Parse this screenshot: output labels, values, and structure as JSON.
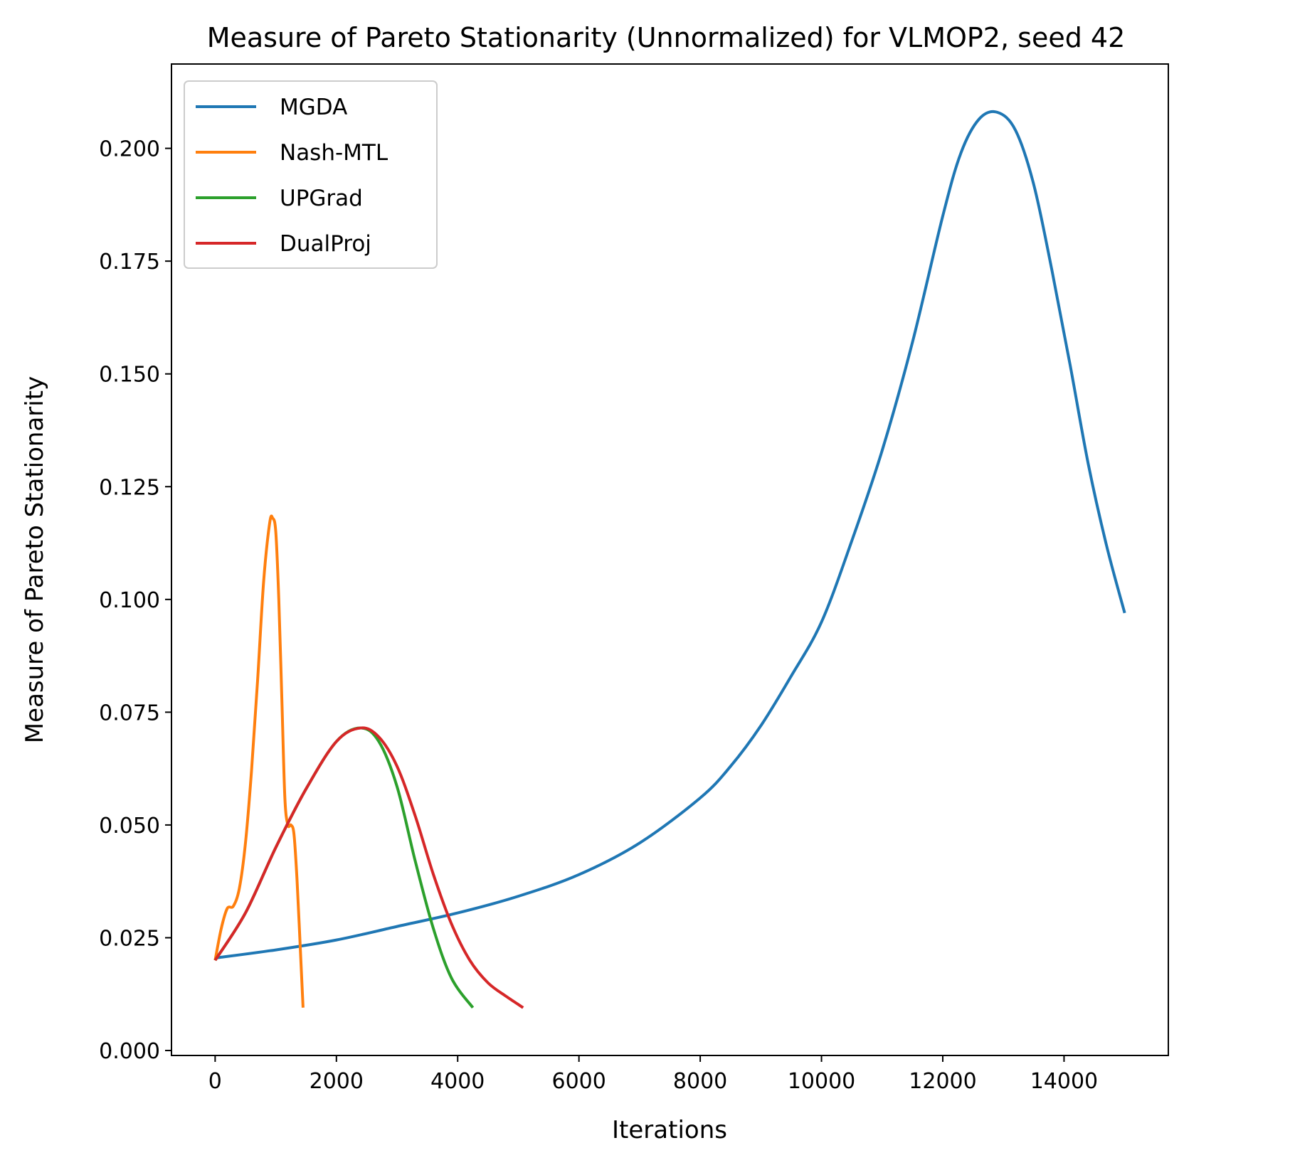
{
  "chart_data": {
    "type": "line",
    "title": "Measure of Pareto Stationarity (Unnormalized) for VLMOP2, seed 42",
    "xlabel": "Iterations",
    "ylabel": "Measure of Pareto Stationarity",
    "xlim": [
      -720,
      15720
    ],
    "ylim": [
      -0.0011,
      0.2187
    ],
    "x_ticks": [
      0,
      2000,
      4000,
      6000,
      8000,
      10000,
      12000,
      14000
    ],
    "x_tick_labels": [
      "0",
      "2000",
      "4000",
      "6000",
      "8000",
      "10000",
      "12000",
      "14000"
    ],
    "y_ticks": [
      0.0,
      0.025,
      0.05,
      0.075,
      0.1,
      0.125,
      0.15,
      0.175,
      0.2
    ],
    "y_tick_labels": [
      "0.000",
      "0.025",
      "0.050",
      "0.075",
      "0.100",
      "0.125",
      "0.150",
      "0.175",
      "0.200"
    ],
    "grid": false,
    "legend_position": "top-left",
    "series": [
      {
        "name": "MGDA",
        "color": "#1f77b4",
        "x": [
          0,
          1000,
          2000,
          3000,
          4000,
          5000,
          6000,
          7000,
          8000,
          8500,
          9000,
          9500,
          10000,
          10500,
          11000,
          11500,
          12000,
          12300,
          12600,
          12900,
          13200,
          13500,
          13800,
          14100,
          14400,
          14700,
          15000
        ],
        "y": [
          0.0205,
          0.0223,
          0.0245,
          0.0275,
          0.0305,
          0.0342,
          0.039,
          0.046,
          0.056,
          0.063,
          0.072,
          0.083,
          0.095,
          0.113,
          0.133,
          0.157,
          0.185,
          0.199,
          0.2065,
          0.208,
          0.204,
          0.192,
          0.173,
          0.152,
          0.13,
          0.112,
          0.097
        ]
      },
      {
        "name": "Nash-MTL",
        "color": "#ff7f0e",
        "x": [
          0,
          100,
          200,
          300,
          400,
          500,
          600,
          700,
          800,
          900,
          950,
          1000,
          1050,
          1100,
          1150,
          1200,
          1250,
          1300,
          1350,
          1400,
          1450
        ],
        "y": [
          0.02,
          0.027,
          0.0315,
          0.032,
          0.036,
          0.046,
          0.062,
          0.082,
          0.104,
          0.117,
          0.118,
          0.115,
          0.1,
          0.078,
          0.056,
          0.05,
          0.05,
          0.048,
          0.038,
          0.024,
          0.0095
        ]
      },
      {
        "name": "UPGrad",
        "color": "#2ca02c",
        "x": [
          0,
          500,
          1000,
          1500,
          2000,
          2400,
          2700,
          3000,
          3300,
          3600,
          3900,
          4250
        ],
        "y": [
          0.02,
          0.0305,
          0.045,
          0.058,
          0.0685,
          0.0715,
          0.0685,
          0.0585,
          0.042,
          0.027,
          0.016,
          0.0095
        ]
      },
      {
        "name": "DualProj",
        "color": "#d62728",
        "x": [
          0,
          500,
          1000,
          1500,
          2000,
          2400,
          2700,
          3000,
          3300,
          3600,
          3900,
          4200,
          4500,
          4800,
          5080
        ],
        "y": [
          0.02,
          0.0305,
          0.045,
          0.058,
          0.0685,
          0.0715,
          0.0695,
          0.063,
          0.052,
          0.039,
          0.028,
          0.02,
          0.015,
          0.012,
          0.0095
        ]
      }
    ]
  }
}
